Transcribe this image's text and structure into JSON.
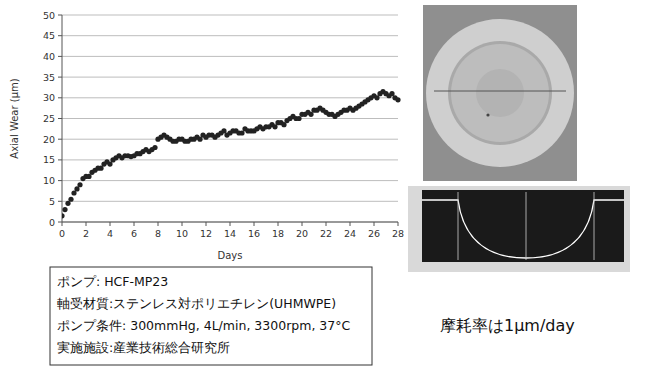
{
  "chart_data": {
    "type": "scatter",
    "x_label": "Days",
    "y_label": "Axial Wear (μm)",
    "x": [
      0,
      0.25,
      0.5,
      0.75,
      1,
      1.25,
      1.5,
      1.75,
      2,
      2.25,
      2.5,
      2.75,
      3,
      3.25,
      3.5,
      3.75,
      4,
      4.25,
      4.5,
      4.75,
      5,
      5.25,
      5.5,
      5.75,
      6,
      6.25,
      6.5,
      6.75,
      7,
      7.25,
      7.5,
      7.75,
      8,
      8.25,
      8.5,
      8.75,
      9,
      9.25,
      9.5,
      9.75,
      10,
      10.25,
      10.5,
      10.75,
      11,
      11.25,
      11.5,
      11.75,
      12,
      12.25,
      12.5,
      12.75,
      13,
      13.25,
      13.5,
      13.75,
      14,
      14.25,
      14.5,
      14.75,
      15,
      15.25,
      15.5,
      15.75,
      16,
      16.25,
      16.5,
      16.75,
      17,
      17.25,
      17.5,
      17.75,
      18,
      18.25,
      18.5,
      18.75,
      19,
      19.25,
      19.5,
      19.75,
      20,
      20.25,
      20.5,
      20.75,
      21,
      21.25,
      21.5,
      21.75,
      22,
      22.25,
      22.5,
      22.75,
      23,
      23.25,
      23.5,
      23.75,
      24,
      24.25,
      24.5,
      24.75,
      25,
      25.25,
      25.5,
      25.75,
      26,
      26.25,
      26.5,
      26.75,
      27,
      27.25,
      27.5,
      27.75,
      28
    ],
    "values": [
      1.5,
      3,
      4.5,
      5.5,
      7,
      8,
      9,
      10.5,
      11,
      11,
      12,
      12.5,
      13,
      13,
      14,
      14.5,
      14,
      15,
      15.5,
      16,
      15.5,
      16,
      16,
      15.8,
      16,
      16.5,
      16.5,
      17,
      17.5,
      17,
      17.5,
      18,
      20,
      20.5,
      21,
      20.5,
      20,
      19.5,
      19.5,
      20,
      20,
      19.5,
      19.5,
      20,
      20,
      20.5,
      20,
      21,
      20.5,
      21,
      21,
      20.5,
      21,
      21.5,
      22,
      21,
      21.5,
      22,
      22,
      21.5,
      21.5,
      22.5,
      22,
      22,
      22,
      22.5,
      23,
      22.5,
      23,
      23,
      23.5,
      23,
      24,
      24,
      23.5,
      24.5,
      25,
      25.5,
      25,
      25,
      26,
      26,
      26.5,
      26,
      27,
      27,
      27.5,
      27,
      26.5,
      26,
      26,
      25.5,
      26,
      26.5,
      27,
      27,
      27.5,
      27,
      27.5,
      28,
      28.5,
      29,
      29.5,
      30,
      30.5,
      30,
      31,
      31.5,
      31,
      30.5,
      31,
      30,
      29.5
    ],
    "color": "#222222",
    "marker": "circle",
    "xlim": [
      0,
      28
    ],
    "xticks": [
      0,
      2,
      4,
      6,
      8,
      10,
      12,
      14,
      16,
      18,
      20,
      22,
      24,
      26,
      28
    ],
    "ylim": [
      0,
      50
    ],
    "yticks": [
      0,
      5,
      10,
      15,
      20,
      25,
      30,
      35,
      40,
      45,
      50
    ],
    "grid": true
  },
  "info_box": {
    "lines": [
      "ポンプ: HCF-MP23",
      "軸受材質:ステンレス対ポリエチレン(UHMWPE)",
      "ポンプ条件: 300mmHg, 4L/min, 3300rpm, 37°C",
      "実施施設:産業技術総合研究所"
    ]
  },
  "annotation": "摩耗率は1μm/day"
}
